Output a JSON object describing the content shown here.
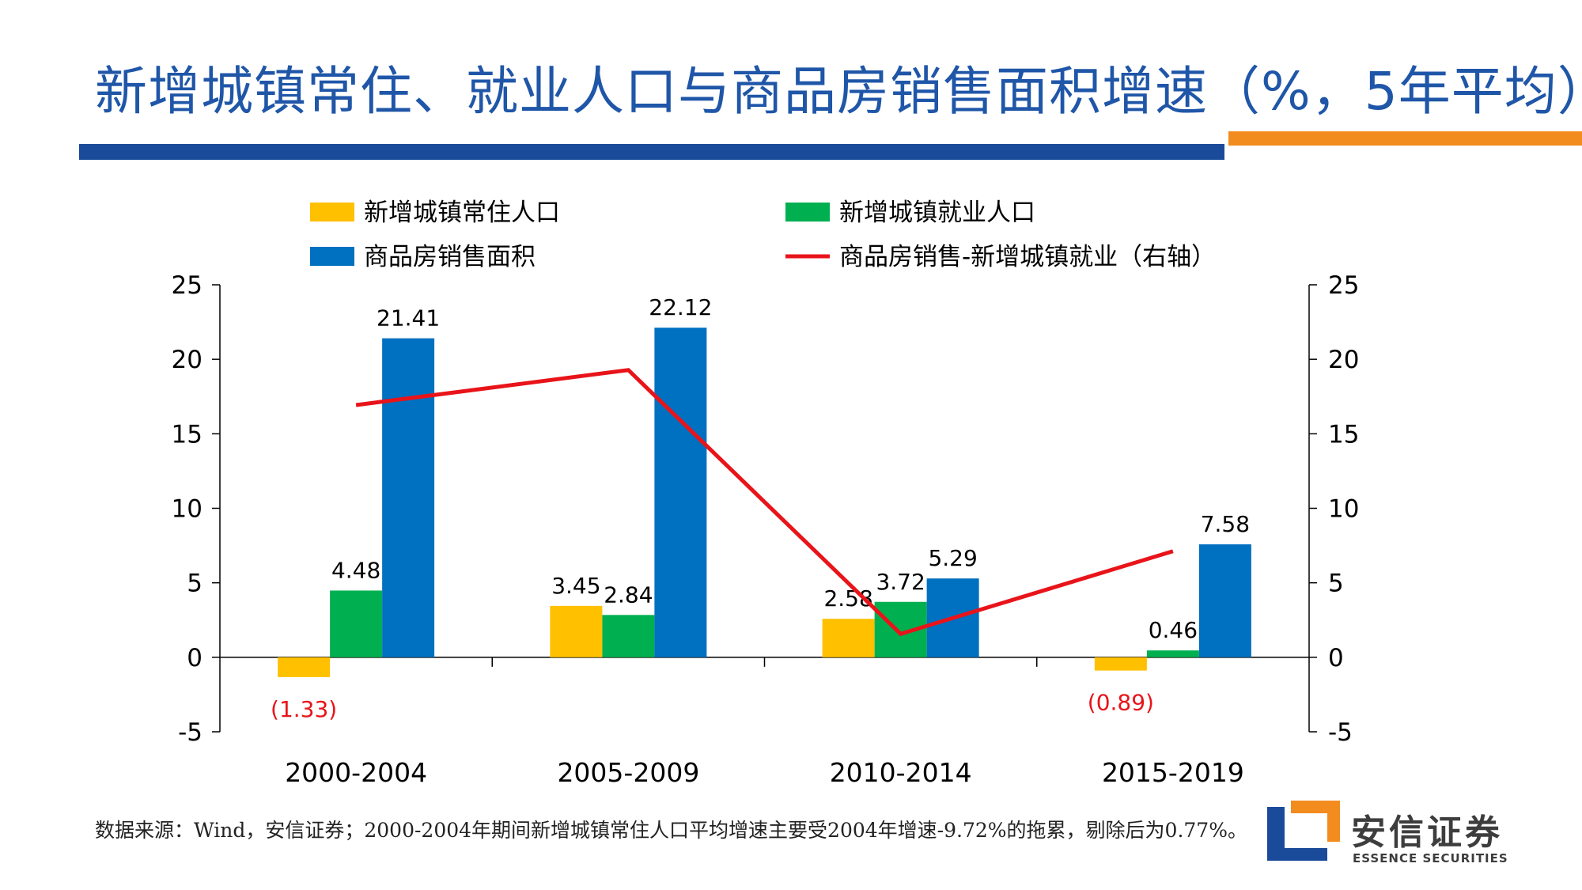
{
  "page": {
    "title": "新增城镇常住、就业人口与商品房销售面积增速（%，5年平均）",
    "source_note": "数据来源：Wind，安信证券；2000-2004年期间新增城镇常住人口平均增速主要受2004年增速-9.72%的拖累，剔除后为0.77%。",
    "logo_cn": "安信证券",
    "logo_en": "ESSENCE SECURITIES"
  },
  "colors": {
    "title": "#1f56a8",
    "yellow": "#ffc000",
    "green": "#00b050",
    "blue": "#0070c0",
    "red": "#e8141a",
    "negative_label": "#e8141a"
  },
  "chart_data": {
    "type": "bar",
    "categories": [
      "2000-2004",
      "2005-2009",
      "2010-2014",
      "2015-2019"
    ],
    "series": [
      {
        "name": "新增城镇常住人口",
        "kind": "bar",
        "color": "#ffc000",
        "values": [
          -1.33,
          3.45,
          2.58,
          -0.89
        ],
        "labels": [
          "(1.33)",
          "3.45",
          "2.58",
          "(0.89)"
        ]
      },
      {
        "name": "新增城镇就业人口",
        "kind": "bar",
        "color": "#00b050",
        "values": [
          4.48,
          2.84,
          3.72,
          0.46
        ],
        "labels": [
          "4.48",
          "2.84",
          "3.72",
          "0.46"
        ]
      },
      {
        "name": "商品房销售面积",
        "kind": "bar",
        "color": "#0070c0",
        "values": [
          21.41,
          22.12,
          5.29,
          7.58
        ],
        "labels": [
          "21.41",
          "22.12",
          "5.29",
          "7.58"
        ]
      },
      {
        "name": "商品房销售-新增城镇就业（右轴）",
        "kind": "line",
        "axis": "right",
        "color": "#e8141a",
        "values": [
          16.93,
          19.28,
          1.57,
          7.12
        ]
      }
    ],
    "y_left": {
      "min": -5,
      "max": 25,
      "ticks": [
        25,
        20,
        15,
        10,
        5,
        0,
        -5
      ]
    },
    "y_right": {
      "min": -5,
      "max": 25,
      "ticks": [
        25,
        20,
        15,
        10,
        5,
        0,
        -5
      ]
    },
    "legend_position": "top"
  }
}
